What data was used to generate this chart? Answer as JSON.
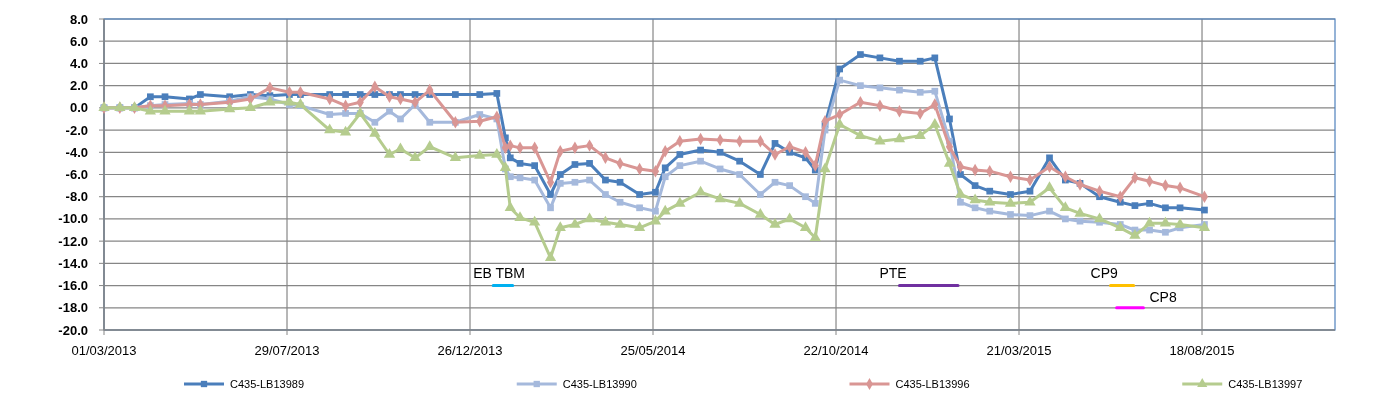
{
  "chart_data": {
    "type": "line",
    "x": [
      "2013-03-01",
      "2013-03-14",
      "2013-03-26",
      "2013-04-08",
      "2013-04-20",
      "2013-05-10",
      "2013-05-19",
      "2013-06-12",
      "2013-06-29",
      "2013-07-15",
      "2013-07-31",
      "2013-08-09",
      "2013-09-02",
      "2013-09-15",
      "2013-09-27",
      "2013-10-09",
      "2013-10-21",
      "2013-10-30",
      "2013-11-11",
      "2013-11-23",
      "2013-12-14",
      "2014-01-03",
      "2014-01-17",
      "2014-01-24",
      "2014-01-28",
      "2014-02-05",
      "2014-02-17",
      "2014-03-02",
      "2014-03-10",
      "2014-03-22",
      "2014-04-03",
      "2014-04-16",
      "2014-04-28",
      "2014-05-14",
      "2014-05-27",
      "2014-06-04",
      "2014-06-16",
      "2014-07-03",
      "2014-07-19",
      "2014-08-04",
      "2014-08-21",
      "2014-09-02",
      "2014-09-14",
      "2014-09-27",
      "2014-10-05",
      "2014-10-13",
      "2014-10-25",
      "2014-11-11",
      "2014-11-27",
      "2014-12-13",
      "2014-12-30",
      "2015-01-11",
      "2015-01-23",
      "2015-02-01",
      "2015-02-13",
      "2015-02-25",
      "2015-03-14",
      "2015-03-30",
      "2015-04-15",
      "2015-04-28",
      "2015-05-10",
      "2015-05-26",
      "2015-06-12",
      "2015-06-24",
      "2015-07-06",
      "2015-07-19",
      "2015-07-31",
      "2015-08-20"
    ],
    "series": [
      {
        "name": "C435-LB13989",
        "color": "#4a7ebb",
        "marker": "square",
        "values": [
          0,
          0,
          0,
          1.0,
          1.0,
          0.8,
          1.2,
          1.0,
          1.2,
          1.1,
          1.2,
          1.2,
          1.2,
          1.2,
          1.2,
          1.2,
          1.2,
          1.2,
          1.2,
          1.2,
          1.2,
          1.2,
          1.3,
          -2.7,
          -4.5,
          -5.0,
          -5.2,
          -7.8,
          -6.0,
          -5.1,
          -5.0,
          -6.5,
          -6.7,
          -7.8,
          -7.6,
          -5.4,
          -4.2,
          -3.8,
          -4.0,
          -4.8,
          -6.0,
          -3.2,
          -4.0,
          -4.5,
          -5.6,
          -1.5,
          3.5,
          4.8,
          4.5,
          4.2,
          4.2,
          4.5,
          -1.0,
          -6.0,
          -7.0,
          -7.5,
          -7.8,
          -7.5,
          -4.5,
          -6.5,
          -6.8,
          -8.0,
          -8.5,
          -8.8,
          -8.6,
          -9.0,
          -9.0,
          -9.2
        ]
      },
      {
        "name": "C435-LB13990",
        "color": "#a5b9dc",
        "marker": "square",
        "values": [
          0,
          0,
          0,
          0.2,
          0.3,
          0.4,
          0.3,
          0.6,
          1.0,
          0.8,
          0.3,
          0.2,
          -0.6,
          -0.5,
          -0.5,
          -1.3,
          -0.3,
          -1.0,
          0.3,
          -1.3,
          -1.3,
          -0.6,
          -1.0,
          -5.5,
          -6.2,
          -6.3,
          -6.5,
          -9.0,
          -6.8,
          -6.7,
          -6.5,
          -7.8,
          -8.5,
          -9.0,
          -9.3,
          -6.2,
          -5.2,
          -4.8,
          -5.5,
          -6.0,
          -7.8,
          -6.7,
          -7.0,
          -8.0,
          -8.6,
          -2.0,
          2.5,
          2.0,
          1.8,
          1.6,
          1.4,
          1.5,
          -3.0,
          -8.5,
          -9.0,
          -9.3,
          -9.6,
          -9.7,
          -9.3,
          -10.0,
          -10.2,
          -10.3,
          -10.5,
          -11.0,
          -11.0,
          -11.2,
          -10.8,
          -10.5
        ]
      },
      {
        "name": "C435-LB13996",
        "color": "#d99694",
        "marker": "diamond",
        "values": [
          0,
          0,
          0,
          0.2,
          0.2,
          0.3,
          0.3,
          0.5,
          0.8,
          1.8,
          1.4,
          1.4,
          0.8,
          0.2,
          0.5,
          1.9,
          1.0,
          0.8,
          0.5,
          1.6,
          -1.3,
          -1.2,
          -0.8,
          -3.6,
          -3.4,
          -3.6,
          -3.6,
          -6.7,
          -3.9,
          -3.6,
          -3.4,
          -4.5,
          -5.0,
          -5.5,
          -5.7,
          -3.9,
          -3.0,
          -2.8,
          -2.9,
          -3.0,
          -3.0,
          -4.2,
          -3.5,
          -4.0,
          -5.2,
          -1.2,
          -0.6,
          0.5,
          0.2,
          -0.3,
          -0.5,
          0.3,
          -3.5,
          -5.3,
          -5.6,
          -5.7,
          -6.2,
          -6.5,
          -5.3,
          -6.2,
          -6.9,
          -7.5,
          -8.0,
          -6.3,
          -6.6,
          -7.0,
          -7.2,
          -8.0
        ]
      },
      {
        "name": "C435-LB13997",
        "color": "#b5cc8e",
        "marker": "triangle",
        "values": [
          0,
          0,
          0,
          -0.3,
          -0.3,
          -0.3,
          -0.3,
          -0.1,
          0.0,
          0.5,
          0.5,
          0.3,
          -2.0,
          -2.2,
          -0.5,
          -2.3,
          -4.2,
          -3.7,
          -4.5,
          -3.5,
          -4.5,
          -4.3,
          -4.2,
          -5.4,
          -9.0,
          -9.9,
          -10.3,
          -13.5,
          -10.8,
          -10.5,
          -10.0,
          -10.3,
          -10.5,
          -10.8,
          -10.2,
          -9.3,
          -8.6,
          -7.6,
          -8.2,
          -8.6,
          -9.6,
          -10.5,
          -10.0,
          -10.8,
          -11.7,
          -5.5,
          -1.5,
          -2.5,
          -3.0,
          -2.8,
          -2.5,
          -1.5,
          -5.0,
          -7.8,
          -8.3,
          -8.5,
          -8.6,
          -8.5,
          -7.2,
          -9.0,
          -9.5,
          -10.0,
          -10.8,
          -11.5,
          -10.4,
          -10.4,
          -10.5,
          -10.8
        ]
      },
      {
        "name": "EB TBM",
        "color": "#00b0f0",
        "marker": "none",
        "x": [
          "2014-01-14",
          "2014-01-30"
        ],
        "values": [
          -16,
          -16
        ]
      },
      {
        "name": "PTE",
        "color": "#7030a0",
        "marker": "none",
        "x": [
          "2014-12-13",
          "2015-01-30"
        ],
        "values": [
          -16,
          -16
        ]
      },
      {
        "name": "CP9",
        "color": "#ffc000",
        "marker": "none",
        "x": [
          "2015-06-04",
          "2015-06-23"
        ],
        "values": [
          -16,
          -16
        ]
      },
      {
        "name": "CP8",
        "color": "#ff00ff",
        "marker": "none",
        "x": [
          "2015-06-09",
          "2015-07-01"
        ],
        "values": [
          -18,
          -18
        ]
      }
    ],
    "xlim": [
      "2013-03-01",
      "2015-12-05"
    ],
    "xticks": [
      {
        "value": "2013-03-01",
        "label": "01/03/2013"
      },
      {
        "value": "2013-07-29",
        "label": "29/07/2013"
      },
      {
        "value": "2013-12-26",
        "label": "26/12/2013"
      },
      {
        "value": "2014-05-25",
        "label": "25/05/2014"
      },
      {
        "value": "2014-10-22",
        "label": "22/10/2014"
      },
      {
        "value": "2015-03-21",
        "label": "21/03/2015"
      },
      {
        "value": "2015-08-18",
        "label": "18/08/2015"
      }
    ],
    "ylim": [
      -20,
      8
    ],
    "yticks": [
      {
        "value": 8,
        "label": "8.0"
      },
      {
        "value": 6,
        "label": "6.0"
      },
      {
        "value": 4,
        "label": "4.0"
      },
      {
        "value": 2,
        "label": "2.0"
      },
      {
        "value": 0,
        "label": "0.0"
      },
      {
        "value": -2,
        "label": "-2.0"
      },
      {
        "value": -4,
        "label": "-4.0"
      },
      {
        "value": -6,
        "label": "-6.0"
      },
      {
        "value": -8,
        "label": "-8.0"
      },
      {
        "value": -10,
        "label": "-10.0"
      },
      {
        "value": -12,
        "label": "-12.0"
      },
      {
        "value": -14,
        "label": "-14.0"
      },
      {
        "value": -16,
        "label": "-16.0"
      },
      {
        "value": -18,
        "label": "-18.0"
      },
      {
        "value": -20,
        "label": "-20.0"
      }
    ],
    "grid": true,
    "legend": "bottom"
  }
}
